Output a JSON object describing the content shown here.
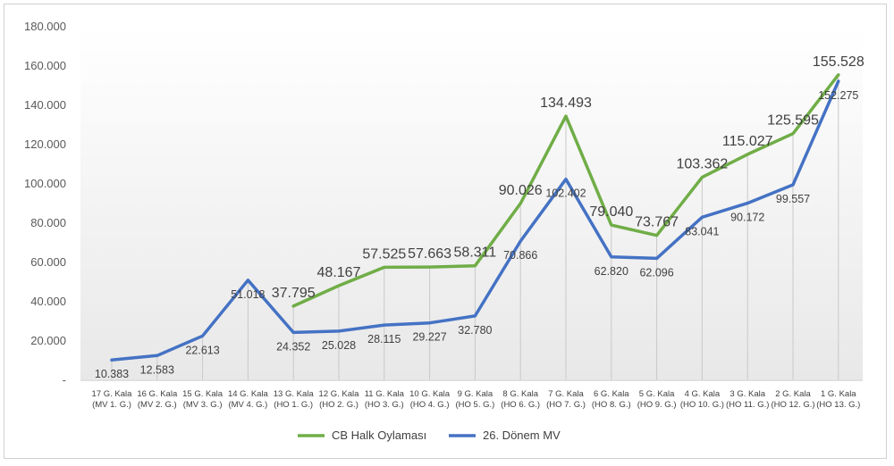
{
  "chart_data": {
    "type": "line",
    "title": "",
    "xlabel": "",
    "ylabel": "",
    "ylim": [
      0,
      180000
    ],
    "y_ticks": [
      "-",
      "20.000",
      "40.000",
      "60.000",
      "80.000",
      "100.000",
      "120.000",
      "140.000",
      "160.000",
      "180.000"
    ],
    "grid": "vertical",
    "legend_position": "bottom",
    "categories": [
      [
        "17 G. Kala",
        "(MV 1. G.)"
      ],
      [
        "16 G. Kala",
        "(MV 2. G.)"
      ],
      [
        "15 G. Kala",
        "(MV 3. G.)"
      ],
      [
        "14 G. Kala",
        "(MV 4. G.)"
      ],
      [
        "13 G. Kala",
        "(HO 1. G.)"
      ],
      [
        "12 G. Kala",
        "(HO 2. G.)"
      ],
      [
        "11 G. Kala",
        "(HO 3. G.)"
      ],
      [
        "10 G. Kala",
        "(HO 4. G.)"
      ],
      [
        "9 G. Kala",
        "(HO 5. G.)"
      ],
      [
        "8 G. Kala",
        "(HO 6. G.)"
      ],
      [
        "7 G. Kala",
        "(HO 7. G.)"
      ],
      [
        "6 G. Kala",
        "(HO 8. G.)"
      ],
      [
        "5 G. Kala",
        "(HO 9. G.)"
      ],
      [
        "4 G. Kala",
        "(HO 10. G.)"
      ],
      [
        "3 G. Kala",
        "(HO 11. G.)"
      ],
      [
        "2 G. Kala",
        "(HO 12. G.)"
      ],
      [
        "1 G. Kala",
        "(HO 13. G.)"
      ]
    ],
    "series": [
      {
        "name": "CB Halk Oylaması",
        "color": "#70ad47",
        "values": [
          null,
          null,
          null,
          null,
          37795,
          48167,
          57525,
          57663,
          58311,
          90026,
          134493,
          79040,
          73767,
          103362,
          115027,
          125595,
          155528
        ],
        "labels": [
          "",
          "",
          "",
          "",
          "37.795",
          "48.167",
          "57.525",
          "57.663",
          "58.311",
          "90.026",
          "134.493",
          "79.040",
          "73.767",
          "103.362",
          "115.027",
          "125.595",
          "155.528"
        ]
      },
      {
        "name": "26. Dönem MV",
        "color": "#4472c4",
        "values": [
          10383,
          12583,
          22613,
          51018,
          24352,
          25028,
          28115,
          29227,
          32780,
          70866,
          102402,
          62820,
          62096,
          83041,
          90172,
          99557,
          152275
        ],
        "labels": [
          "10.383",
          "12.583",
          "22.613",
          "51.018",
          "24.352",
          "25.028",
          "28.115",
          "29.227",
          "32.780",
          "70.866",
          "102.402",
          "62.820",
          "62.096",
          "83.041",
          "90.172",
          "99.557",
          "152.275"
        ]
      }
    ]
  }
}
